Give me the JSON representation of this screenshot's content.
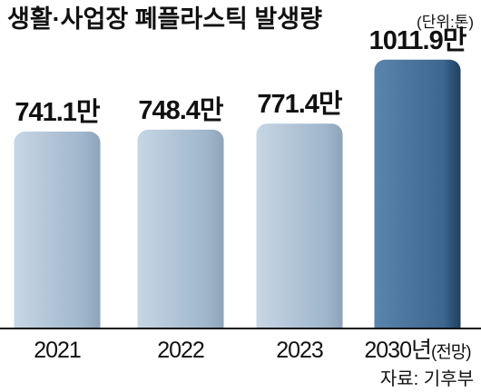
{
  "header": {
    "title": "생활·사업장 폐플라스틱 발생량",
    "unit": "(단위:톤)"
  },
  "source": "자료: 기후부",
  "colors": {
    "past_bar_top": "#c7d6e4",
    "past_bar_bottom": "#9fb6cc",
    "past_bar_edge": "#8ea4b8",
    "forecast_bar_top": "#5a85ad",
    "forecast_bar_bottom": "#3d6690",
    "forecast_bar_edge": "#1f3f5f",
    "baseline": "#111111",
    "text": "#111111"
  },
  "chart_data": {
    "type": "bar",
    "title": "생활·사업장 폐플라스틱 발생량",
    "unit": "(단위:톤)",
    "categories": [
      "2021",
      "2022",
      "2023",
      "2030년"
    ],
    "category_suffix": [
      "",
      "",
      "",
      "(전망)"
    ],
    "values": [
      7411000,
      7484000,
      7714000,
      10119000
    ],
    "data_labels": [
      "741.1만",
      "748.4만",
      "771.4만",
      "1011.9만"
    ],
    "forecast_index": 3,
    "grid": false,
    "legend": "none",
    "ylim": [
      0,
      11000000
    ]
  }
}
